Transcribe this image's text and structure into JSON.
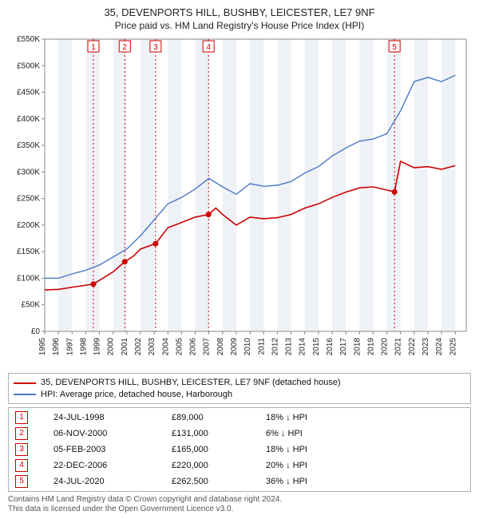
{
  "title_line1": "35, DEVENPORTS HILL, BUSHBY, LEICESTER, LE7 9NF",
  "title_line2": "Price paid vs. HM Land Registry's House Price Index (HPI)",
  "chart": {
    "type": "line",
    "background_color": "#ffffff",
    "grid_band_color": "#eef2f7",
    "axis_color": "#888888",
    "xlim": [
      1995,
      2025.8
    ],
    "ylim": [
      0,
      550000
    ],
    "ytick_step": 50000,
    "ytick_labels": [
      "£0",
      "£50K",
      "£100K",
      "£150K",
      "£200K",
      "£250K",
      "£300K",
      "£350K",
      "£400K",
      "£450K",
      "£500K",
      "£550K"
    ],
    "xticks": [
      1995,
      1996,
      1997,
      1998,
      1999,
      2000,
      2001,
      2002,
      2003,
      2004,
      2005,
      2006,
      2007,
      2008,
      2009,
      2010,
      2011,
      2012,
      2013,
      2014,
      2015,
      2016,
      2017,
      2018,
      2019,
      2020,
      2021,
      2022,
      2023,
      2024,
      2025
    ],
    "series": [
      {
        "name": "hpi",
        "label": "HPI: Average price, detached house, Harborough",
        "color": "#4a78c4",
        "line_width": 1.4,
        "points": [
          [
            1995,
            100000
          ],
          [
            1996,
            100000
          ],
          [
            1997,
            108000
          ],
          [
            1998,
            115000
          ],
          [
            1999,
            125000
          ],
          [
            2000,
            140000
          ],
          [
            2001,
            155000
          ],
          [
            2002,
            180000
          ],
          [
            2003,
            210000
          ],
          [
            2004,
            240000
          ],
          [
            2005,
            252000
          ],
          [
            2006,
            268000
          ],
          [
            2007,
            288000
          ],
          [
            2008,
            272000
          ],
          [
            2009,
            258000
          ],
          [
            2010,
            278000
          ],
          [
            2011,
            273000
          ],
          [
            2012,
            275000
          ],
          [
            2013,
            282000
          ],
          [
            2014,
            298000
          ],
          [
            2015,
            310000
          ],
          [
            2016,
            330000
          ],
          [
            2017,
            345000
          ],
          [
            2018,
            358000
          ],
          [
            2019,
            362000
          ],
          [
            2020,
            372000
          ],
          [
            2021,
            415000
          ],
          [
            2022,
            470000
          ],
          [
            2023,
            478000
          ],
          [
            2024,
            470000
          ],
          [
            2025,
            482000
          ]
        ]
      },
      {
        "name": "property",
        "label": "35, DEVENPORTS HILL, BUSHBY, LEICESTER, LE7 9NF (detached house)",
        "color": "#cc0000",
        "line_width": 1.6,
        "points": [
          [
            1995,
            78000
          ],
          [
            1996,
            79000
          ],
          [
            1997,
            83000
          ],
          [
            1998.56,
            89000
          ],
          [
            1999,
            96000
          ],
          [
            2000,
            112000
          ],
          [
            2000.85,
            131000
          ],
          [
            2001.5,
            142000
          ],
          [
            2002,
            155000
          ],
          [
            2003.1,
            165000
          ],
          [
            2004,
            195000
          ],
          [
            2005,
            205000
          ],
          [
            2006,
            215000
          ],
          [
            2006.97,
            220000
          ],
          [
            2007.5,
            232000
          ],
          [
            2008,
            220000
          ],
          [
            2009,
            200000
          ],
          [
            2010,
            215000
          ],
          [
            2011,
            212000
          ],
          [
            2012,
            214000
          ],
          [
            2013,
            220000
          ],
          [
            2014,
            232000
          ],
          [
            2015,
            240000
          ],
          [
            2016,
            252000
          ],
          [
            2017,
            262000
          ],
          [
            2018,
            270000
          ],
          [
            2019,
            272000
          ],
          [
            2020.56,
            262500
          ],
          [
            2021,
            320000
          ],
          [
            2022,
            308000
          ],
          [
            2023,
            310000
          ],
          [
            2024,
            305000
          ],
          [
            2025,
            312000
          ]
        ]
      }
    ],
    "sale_markers": [
      {
        "n": "1",
        "x": 1998.56,
        "y": 89000
      },
      {
        "n": "2",
        "x": 2000.85,
        "y": 131000
      },
      {
        "n": "3",
        "x": 2003.1,
        "y": 165000
      },
      {
        "n": "4",
        "x": 2006.97,
        "y": 220000
      },
      {
        "n": "5",
        "x": 2020.56,
        "y": 262500
      }
    ],
    "marker_line_color": "#cc0000",
    "marker_dot_color": "#cc0000"
  },
  "legend": {
    "items": [
      {
        "color": "#cc0000",
        "label": "35, DEVENPORTS HILL, BUSHBY, LEICESTER, LE7 9NF (detached house)"
      },
      {
        "color": "#4a78c4",
        "label": "HPI: Average price, detached house, Harborough"
      }
    ]
  },
  "sales_table": {
    "badge_color": "#cc0000",
    "rows": [
      {
        "n": "1",
        "date": "24-JUL-1998",
        "price": "£89,000",
        "delta": "18% ↓ HPI"
      },
      {
        "n": "2",
        "date": "06-NOV-2000",
        "price": "£131,000",
        "delta": "6% ↓ HPI"
      },
      {
        "n": "3",
        "date": "05-FEB-2003",
        "price": "£165,000",
        "delta": "18% ↓ HPI"
      },
      {
        "n": "4",
        "date": "22-DEC-2006",
        "price": "£220,000",
        "delta": "20% ↓ HPI"
      },
      {
        "n": "5",
        "date": "24-JUL-2020",
        "price": "£262,500",
        "delta": "36% ↓ HPI"
      }
    ]
  },
  "footer_line1": "Contains HM Land Registry data © Crown copyright and database right 2024.",
  "footer_line2": "This data is licensed under the Open Government Licence v3.0."
}
